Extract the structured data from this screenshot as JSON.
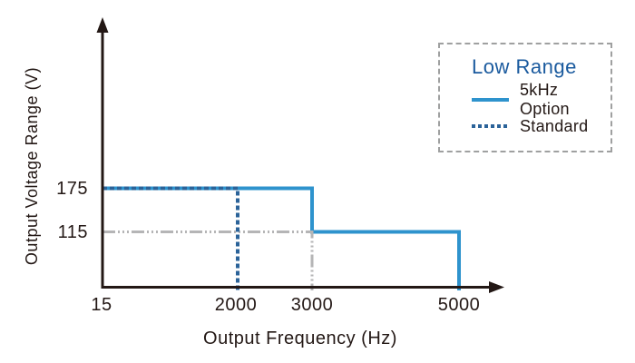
{
  "colors": {
    "ink": "#231815",
    "legend_title_blue": "#1a5a9e",
    "legend_border_gray": "#9fa0a0"
  },
  "chart_data": {
    "type": "line",
    "subtype": "step",
    "xlabel": "Output Frequency (Hz)",
    "ylabel": "Output Voltage Range (V)",
    "x_ticks": [
      "15",
      "2000",
      "3000",
      "5000"
    ],
    "y_ticks": [
      "175",
      "115"
    ],
    "grid": false,
    "legend": {
      "title": "Low Range",
      "position": "top-right",
      "entries": [
        {
          "label": "5kHz Option",
          "line_style": "solid"
        },
        {
          "label": "Standard",
          "line_style": "dashed"
        }
      ]
    },
    "series": [
      {
        "name": "5kHz Option",
        "line_style": "solid",
        "color": "#2e93cd",
        "points_hz_v": [
          [
            15,
            175
          ],
          [
            3000,
            175
          ],
          [
            3000,
            115
          ],
          [
            5000,
            115
          ],
          [
            5000,
            0
          ]
        ]
      },
      {
        "name": "Standard",
        "line_style": "dashed",
        "color": "#2b6399",
        "points_hz_v": [
          [
            15,
            175
          ],
          [
            2000,
            175
          ],
          [
            2000,
            0
          ]
        ]
      }
    ],
    "reference_line": {
      "line_style": "dash-dot-dot",
      "color": "#b5b5b6",
      "points_hz_v": [
        [
          15,
          115
        ],
        [
          3000,
          115
        ],
        [
          3000,
          0
        ]
      ]
    }
  }
}
